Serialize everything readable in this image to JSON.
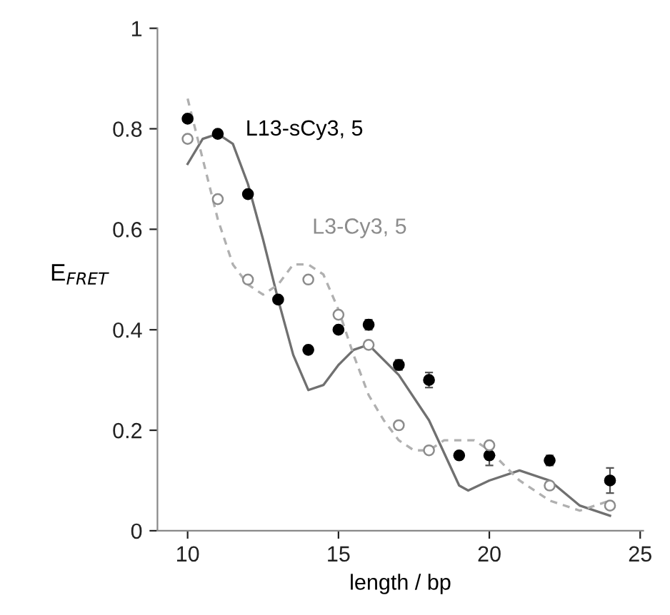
{
  "chart_data": {
    "type": "scatter",
    "xlabel": "length / bp",
    "ylabel": "E$_{FRET}$",
    "xlim": [
      9,
      25.1
    ],
    "xticks": [
      10,
      15,
      20,
      25
    ],
    "ylim": [
      0,
      1
    ],
    "yticks": [
      0,
      0.2,
      0.4,
      0.6,
      0.8,
      1
    ],
    "grid": false,
    "legend": false,
    "series": [
      {
        "name": "L13-sCy3, 5",
        "marker": "circle",
        "color": "#000000",
        "x": [
          10,
          11,
          12,
          13,
          14,
          15,
          16,
          17,
          18,
          19,
          20,
          22,
          24
        ],
        "values": [
          0.82,
          0.79,
          0.67,
          0.46,
          0.36,
          0.4,
          0.41,
          0.33,
          0.3,
          0.15,
          0.15,
          0.14,
          0.1
        ],
        "errors": [
          null,
          null,
          null,
          null,
          null,
          null,
          0.01,
          0.01,
          0.015,
          null,
          0.02,
          0.01,
          0.025
        ]
      },
      {
        "name": "L3-Cy3, 5",
        "marker": "circle",
        "color": "#8c8c8c",
        "x": [
          10,
          11,
          12,
          14,
          15,
          16,
          17,
          18,
          20,
          22,
          24
        ],
        "values": [
          0.78,
          0.66,
          0.5,
          0.5,
          0.43,
          0.37,
          0.21,
          0.16,
          0.17,
          0.09,
          0.05
        ]
      },
      {
        "type": "line",
        "line_style": "solid",
        "color": "#707070",
        "x": [
          10,
          10.5,
          11,
          11.5,
          12,
          12.5,
          13,
          13.5,
          14,
          14.5,
          15,
          15.5,
          16,
          17,
          18,
          19,
          19.3,
          20,
          21,
          22,
          23,
          24
        ],
        "values": [
          0.73,
          0.78,
          0.79,
          0.77,
          0.69,
          0.58,
          0.46,
          0.35,
          0.28,
          0.29,
          0.33,
          0.36,
          0.37,
          0.31,
          0.22,
          0.09,
          0.08,
          0.1,
          0.12,
          0.1,
          0.05,
          0.03
        ]
      },
      {
        "type": "line",
        "line_style": "dashed",
        "color": "#b0b0b0",
        "x": [
          10,
          10.5,
          11,
          11.5,
          12,
          12.5,
          13,
          13.5,
          14,
          14.5,
          15,
          15.5,
          16,
          16.5,
          17,
          17.5,
          18,
          18.5,
          19,
          19.5,
          20,
          20.5,
          21,
          22,
          23,
          23.5,
          24
        ],
        "values": [
          0.86,
          0.74,
          0.62,
          0.53,
          0.49,
          0.47,
          0.49,
          0.53,
          0.53,
          0.51,
          0.44,
          0.35,
          0.27,
          0.22,
          0.18,
          0.16,
          0.16,
          0.18,
          0.18,
          0.18,
          0.16,
          0.13,
          0.1,
          0.06,
          0.04,
          0.05,
          0.06
        ]
      }
    ]
  }
}
